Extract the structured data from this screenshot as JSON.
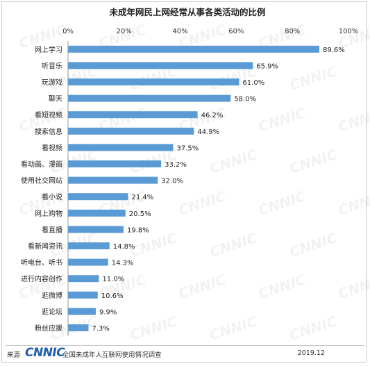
{
  "footer": {
    "source_label": "来源",
    "logo_text": "CNNIC",
    "survey_text": "全国未成年人互联网使用情况调查",
    "date": "2019.12"
  },
  "watermark_text": "CNNIC",
  "chart_data": {
    "type": "bar",
    "orientation": "horizontal",
    "title": "未成年网民上网经常从事各类活动的比例",
    "xlabel": "",
    "ylabel": "",
    "xlim": [
      0,
      100
    ],
    "ticks": [
      "0%",
      "20%",
      "40%",
      "60%",
      "80%",
      "100%"
    ],
    "tick_values": [
      0,
      20,
      40,
      60,
      80,
      100
    ],
    "axis_position": "top",
    "grid": false,
    "bar_color": "#5b9bd5",
    "categories": [
      "网上学习",
      "听音乐",
      "玩游戏",
      "聊天",
      "看短视频",
      "搜索信息",
      "看视频",
      "看动画、漫画",
      "使用社交网站",
      "看小说",
      "网上购物",
      "看直播",
      "看新闻资讯",
      "听电台、听书",
      "进行内容创作",
      "逛微博",
      "逛论坛",
      "粉丝应援"
    ],
    "values": [
      89.6,
      65.9,
      61.0,
      58.0,
      46.2,
      44.9,
      37.5,
      33.2,
      32.0,
      21.4,
      20.5,
      19.8,
      14.8,
      14.3,
      11.0,
      10.6,
      9.9,
      7.3
    ],
    "labels": [
      "89.6%",
      "65.9%",
      "61.0%",
      "58.0%",
      "46.2%",
      "44.9%",
      "37.5%",
      "33.2%",
      "32.0%",
      "21.4%",
      "20.5%",
      "19.8%",
      "14.8%",
      "14.3%",
      "11.0%",
      "10.6%",
      "9.9%",
      "7.3%"
    ]
  }
}
